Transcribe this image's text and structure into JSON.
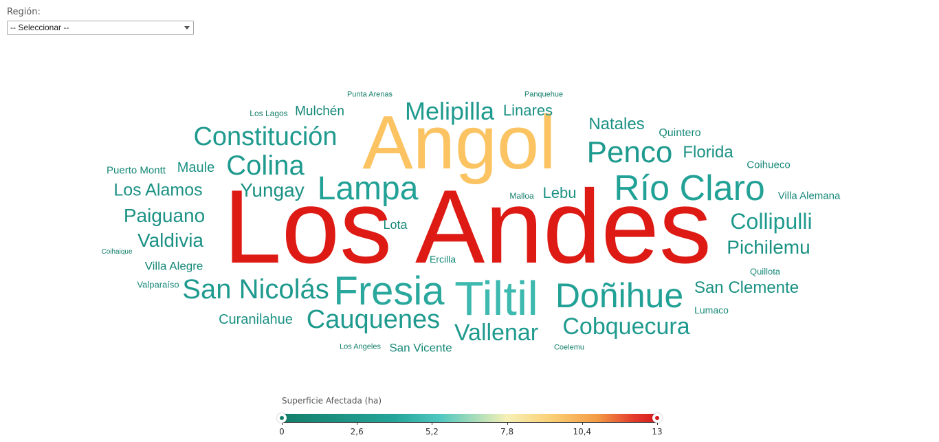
{
  "filter": {
    "label": "Región:",
    "selected": "-- Seleccionar --"
  },
  "wordcloud": {
    "words": [
      {
        "text": "Los Andes",
        "value": 13,
        "color": "#dd1a14"
      },
      {
        "text": "Angol",
        "value": 10.6,
        "color": "#fbc361"
      },
      {
        "text": "Tiltil",
        "value": 5.9,
        "color": "#3db9af"
      },
      {
        "text": "Fresia",
        "value": 5.4,
        "color": "#2aa89d"
      },
      {
        "text": "Río Claro",
        "value": 4.6,
        "color": "#22a196"
      },
      {
        "text": "Lampa",
        "value": 4.5,
        "color": "#22a196"
      },
      {
        "text": "Doñihue",
        "value": 4.4,
        "color": "#22a196"
      },
      {
        "text": "Penco",
        "value": 3.9,
        "color": "#1f9a8e"
      },
      {
        "text": "San Nicolás",
        "value": 3.6,
        "color": "#1f9a8e"
      },
      {
        "text": "Constitución",
        "value": 3.5,
        "color": "#1f9a8e"
      },
      {
        "text": "Cauquenes",
        "value": 3.6,
        "color": "#1f9a8e"
      },
      {
        "text": "Colina",
        "value": 3.5,
        "color": "#1f9a8e"
      },
      {
        "text": "Cobquecura",
        "value": 3.3,
        "color": "#1f9a8e"
      },
      {
        "text": "Vallenar",
        "value": 3.3,
        "color": "#1f9a8e"
      },
      {
        "text": "Melipilla",
        "value": 3.2,
        "color": "#1f9a8e"
      },
      {
        "text": "Collipulli",
        "value": 3.0,
        "color": "#1f9a8e"
      },
      {
        "text": "Paiguano",
        "value": 2.8,
        "color": "#1b9184"
      },
      {
        "text": "Yungay",
        "value": 2.8,
        "color": "#1b9184"
      },
      {
        "text": "Valdivia",
        "value": 2.8,
        "color": "#1b9184"
      },
      {
        "text": "Pichilemu",
        "value": 2.8,
        "color": "#1b9184"
      },
      {
        "text": "Los Alamos",
        "value": 2.6,
        "color": "#1b9184"
      },
      {
        "text": "San Clemente",
        "value": 2.6,
        "color": "#1b9184"
      },
      {
        "text": "Natales",
        "value": 2.4,
        "color": "#1b9184"
      },
      {
        "text": "Florida",
        "value": 2.4,
        "color": "#1b9184"
      },
      {
        "text": "Curanilahue",
        "value": 2.2,
        "color": "#1b9184"
      },
      {
        "text": "Linares",
        "value": 2.2,
        "color": "#1b9184"
      },
      {
        "text": "Maule",
        "value": 2.1,
        "color": "#1b9184"
      },
      {
        "text": "Lebu",
        "value": 2.1,
        "color": "#1b9184"
      },
      {
        "text": "Mulchén",
        "value": 1.9,
        "color": "#168878"
      },
      {
        "text": "San Vicente",
        "value": 1.8,
        "color": "#168878"
      },
      {
        "text": "Villa Alegre",
        "value": 1.8,
        "color": "#168878"
      },
      {
        "text": "Lota",
        "value": 1.8,
        "color": "#168878"
      },
      {
        "text": "Quintero",
        "value": 1.6,
        "color": "#168878"
      },
      {
        "text": "Villa Alemana",
        "value": 1.5,
        "color": "#168878"
      },
      {
        "text": "Coihueco",
        "value": 1.5,
        "color": "#168878"
      },
      {
        "text": "Puerto Montt",
        "value": 1.5,
        "color": "#168878"
      },
      {
        "text": "Ercilla",
        "value": 1.4,
        "color": "#168878"
      },
      {
        "text": "Lumaco",
        "value": 1.4,
        "color": "#168878"
      },
      {
        "text": "Quillota",
        "value": 1.3,
        "color": "#168878"
      },
      {
        "text": "Valparaíso",
        "value": 1.3,
        "color": "#168878"
      },
      {
        "text": "Los Lagos",
        "value": 1.2,
        "color": "#137e6a"
      },
      {
        "text": "Malloa",
        "value": 1.2,
        "color": "#137e6a"
      },
      {
        "text": "Punta Arenas",
        "value": 1.1,
        "color": "#137e6a"
      },
      {
        "text": "Panquehue",
        "value": 1.1,
        "color": "#137e6a"
      },
      {
        "text": "Los Angeles",
        "value": 1.0,
        "color": "#137e6a"
      },
      {
        "text": "Coelemu",
        "value": 1.0,
        "color": "#137e6a"
      },
      {
        "text": "Coihaique",
        "value": 0.9,
        "color": "#137e6a"
      }
    ]
  },
  "legend": {
    "title": "Superficie Afectada (ha)",
    "ticks": [
      "0",
      "2,6",
      "5,2",
      "7,8",
      "10,4",
      "13"
    ],
    "min": 0,
    "max": 13,
    "selected_range": [
      0,
      13
    ],
    "colors": [
      "#137e6a",
      "#25a59a",
      "#4fc7c0",
      "#f6f0b5",
      "#fbcf75",
      "#f39b45",
      "#e3392b",
      "#d7191c"
    ]
  }
}
